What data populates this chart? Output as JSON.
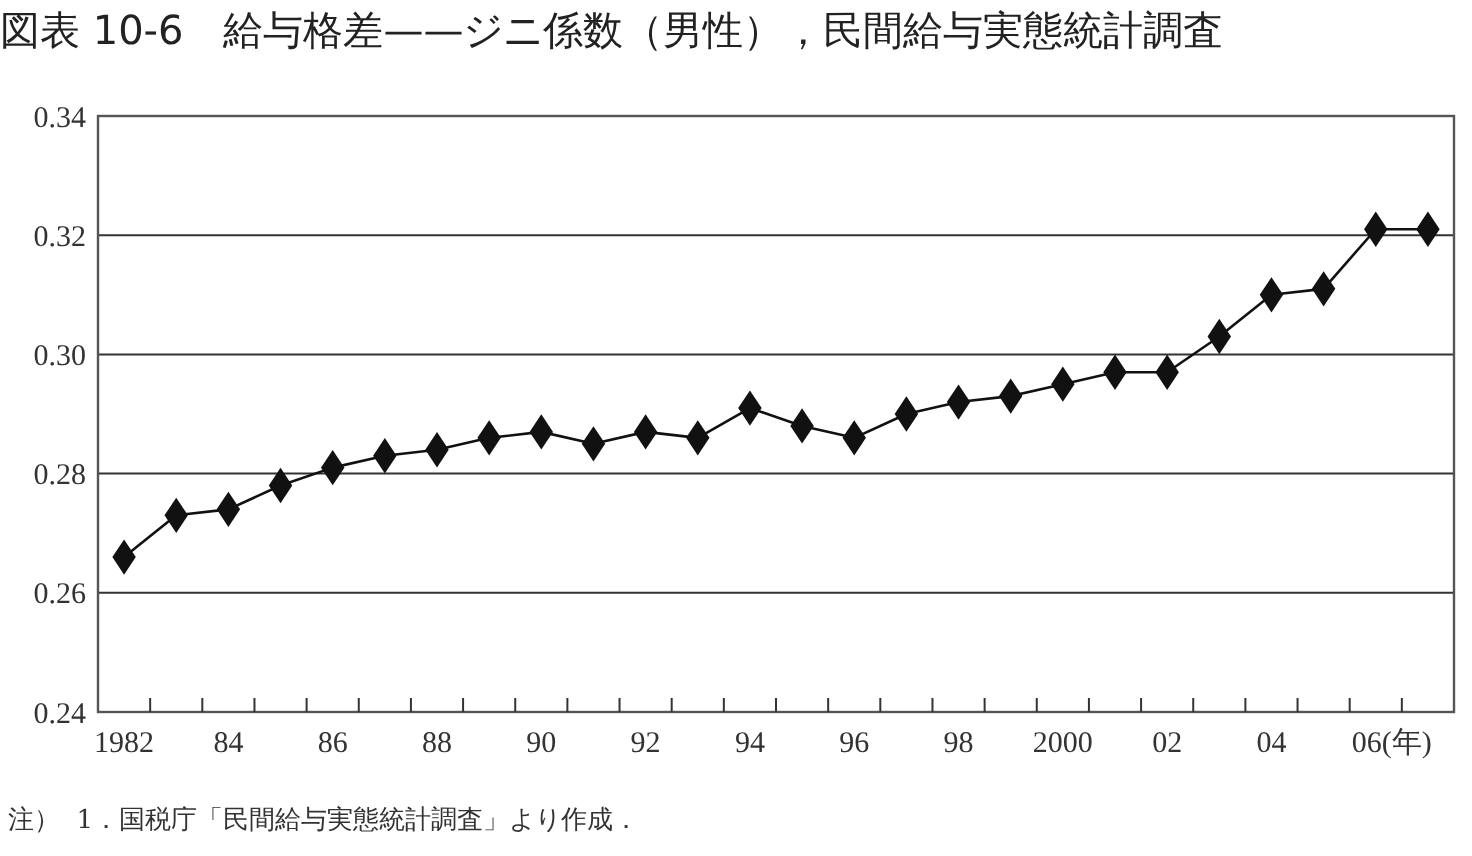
{
  "chart_data": {
    "type": "line",
    "title": "図表 10-6　給与格差——ジニ係数（男性），民間給与実態統計調査",
    "categories": [
      "1982",
      null,
      "84",
      null,
      "86",
      null,
      "88",
      null,
      "90",
      null,
      "92",
      null,
      "94",
      null,
      "96",
      null,
      "98",
      null,
      "2000",
      null,
      "02",
      null,
      "04",
      null,
      "06(年)",
      null
    ],
    "series": [
      {
        "color": "#111111",
        "values": [
          0.266,
          0.273,
          0.274,
          0.278,
          0.281,
          0.283,
          0.284,
          0.286,
          0.287,
          0.285,
          0.287,
          0.286,
          0.291,
          0.288,
          0.286,
          0.29,
          0.292,
          0.293,
          0.295,
          0.297,
          0.297,
          0.303,
          0.31,
          0.311,
          0.321,
          0.321
        ]
      }
    ],
    "ylim": [
      0.24,
      0.34
    ],
    "yticks": [
      0.24,
      0.26,
      0.28,
      {
        "value": 0.3,
        "label": "0.30"
      },
      0.32,
      0.34
    ],
    "grid": "y",
    "marker": "diamond",
    "line_style": "solid",
    "annotations": [
      "注）  1．国税庁「民間給与実態統計調査」より作成．"
    ]
  }
}
